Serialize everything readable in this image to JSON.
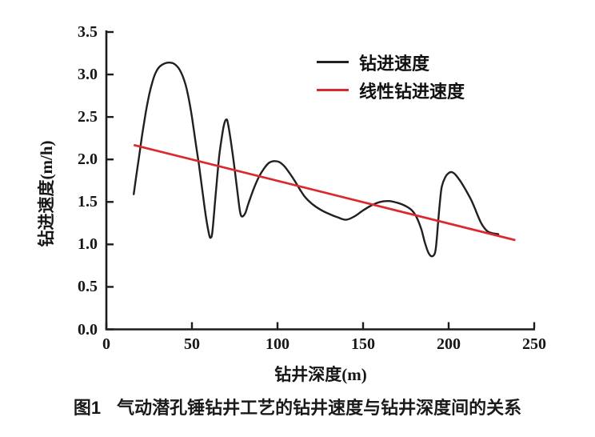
{
  "figure": {
    "caption": {
      "label": "图1",
      "text": "气动潜孔锤钻井工艺的钻井速度与钻井深度间的关系"
    }
  },
  "chart_data": {
    "type": "line",
    "title": "",
    "xlabel": "钻井深度(m)",
    "ylabel": "钻进速度(m/h)",
    "xlim": [
      0,
      250
    ],
    "ylim": [
      0,
      3.5
    ],
    "x_ticks": [
      "0",
      "50",
      "100",
      "150",
      "200",
      "250"
    ],
    "y_ticks": [
      "0.0",
      "0.5",
      "1.0",
      "1.5",
      "2.0",
      "2.5",
      "3.0",
      "3.5"
    ],
    "grid": false,
    "legend_position": "inside-top-right",
    "axis_color": "#1c1c1c",
    "series": [
      {
        "name": "钻进速度",
        "style": "smooth",
        "color": "#231f20",
        "points": [
          [
            16,
            1.59
          ],
          [
            17,
            1.74
          ],
          [
            19,
            2.02
          ],
          [
            21,
            2.3
          ],
          [
            23,
            2.55
          ],
          [
            25,
            2.76
          ],
          [
            27,
            2.92
          ],
          [
            29,
            3.03
          ],
          [
            31,
            3.09
          ],
          [
            34,
            3.13
          ],
          [
            37,
            3.14
          ],
          [
            40,
            3.12
          ],
          [
            43,
            3.05
          ],
          [
            46,
            2.9
          ],
          [
            48,
            2.73
          ],
          [
            50,
            2.5
          ],
          [
            52,
            2.22
          ],
          [
            54,
            1.95
          ],
          [
            56,
            1.65
          ],
          [
            58,
            1.35
          ],
          [
            60,
            1.12
          ],
          [
            61,
            1.08
          ],
          [
            62,
            1.16
          ],
          [
            64,
            1.62
          ],
          [
            66,
            2.05
          ],
          [
            68,
            2.33
          ],
          [
            69,
            2.43
          ],
          [
            70,
            2.47
          ],
          [
            71,
            2.43
          ],
          [
            73,
            2.18
          ],
          [
            75,
            1.88
          ],
          [
            77,
            1.55
          ],
          [
            78,
            1.4
          ],
          [
            79,
            1.33
          ],
          [
            81,
            1.36
          ],
          [
            83,
            1.48
          ],
          [
            86,
            1.65
          ],
          [
            89,
            1.79
          ],
          [
            92,
            1.89
          ],
          [
            95,
            1.96
          ],
          [
            98,
            1.98
          ],
          [
            101,
            1.97
          ],
          [
            104,
            1.92
          ],
          [
            107,
            1.84
          ],
          [
            110,
            1.75
          ],
          [
            113,
            1.65
          ],
          [
            116,
            1.56
          ],
          [
            120,
            1.48
          ],
          [
            125,
            1.41
          ],
          [
            130,
            1.36
          ],
          [
            135,
            1.32
          ],
          [
            140,
            1.29
          ],
          [
            145,
            1.33
          ],
          [
            150,
            1.4
          ],
          [
            155,
            1.46
          ],
          [
            160,
            1.5
          ],
          [
            165,
            1.51
          ],
          [
            170,
            1.49
          ],
          [
            174,
            1.46
          ],
          [
            178,
            1.41
          ],
          [
            181,
            1.33
          ],
          [
            184,
            1.18
          ],
          [
            186,
            1.03
          ],
          [
            188,
            0.91
          ],
          [
            190,
            0.86
          ],
          [
            192,
            0.9
          ],
          [
            193,
            1.05
          ],
          [
            194,
            1.3
          ],
          [
            195,
            1.52
          ],
          [
            196,
            1.68
          ],
          [
            198,
            1.79
          ],
          [
            200,
            1.84
          ],
          [
            202,
            1.85
          ],
          [
            204,
            1.82
          ],
          [
            207,
            1.74
          ],
          [
            210,
            1.64
          ],
          [
            213,
            1.53
          ],
          [
            215,
            1.44
          ],
          [
            217,
            1.34
          ],
          [
            219,
            1.25
          ],
          [
            221,
            1.19
          ],
          [
            223,
            1.15
          ],
          [
            226,
            1.13
          ],
          [
            229,
            1.12
          ]
        ]
      },
      {
        "name": "线性钻进速度",
        "style": "straight",
        "color": "#da2a2e",
        "points": [
          [
            16,
            2.17
          ],
          [
            239,
            1.05
          ]
        ]
      }
    ]
  }
}
